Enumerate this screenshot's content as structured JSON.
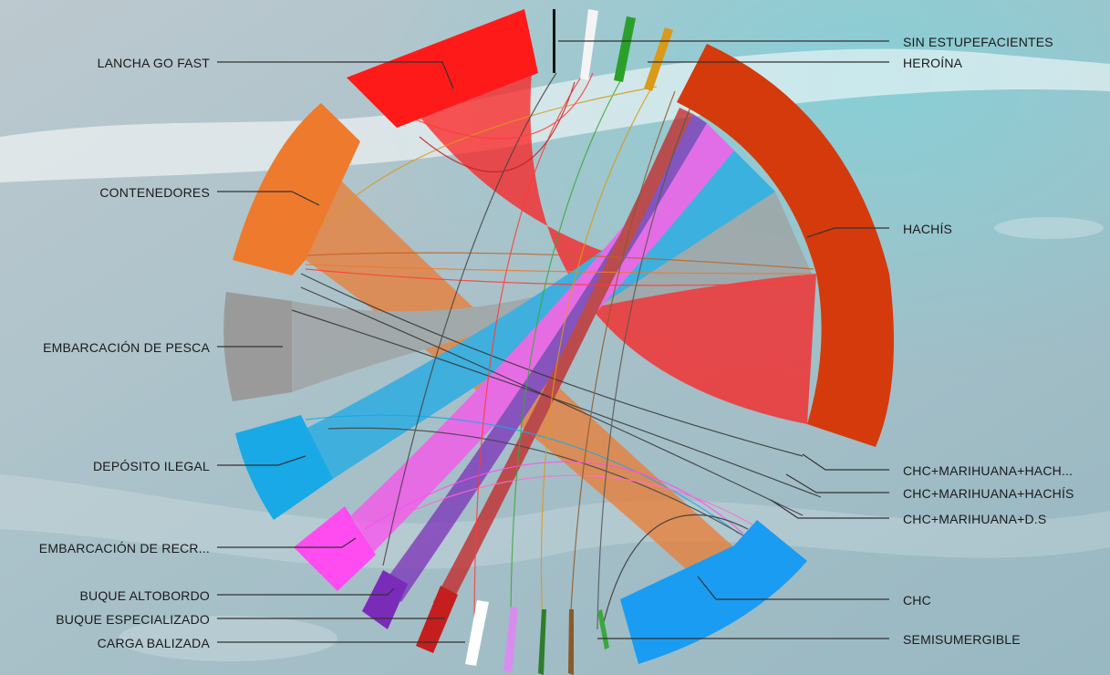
{
  "colors": {
    "lancha": "#ff1a1a",
    "contenedores": "#ee7a2e",
    "pesca": "#9a9a9a",
    "deposito": "#18a9e6",
    "recreo": "#ff4cf0",
    "altobordo": "#7a2bb8",
    "especializado": "#c41e1e",
    "balizada": "#ffffff",
    "hachis": "#d43a0c",
    "chc": "#1a9cf2",
    "sin": "#111111",
    "heroina": "#d89a18",
    "green": "#3aa83a"
  },
  "left_labels": [
    {
      "id": "lancha",
      "text": "LANCHA GO FAST"
    },
    {
      "id": "contenedores",
      "text": "CONTENEDORES"
    },
    {
      "id": "pesca",
      "text": "EMBARCACIÓN DE PESCA"
    },
    {
      "id": "deposito",
      "text": "DEPÓSITO ILEGAL"
    },
    {
      "id": "recreo",
      "text": "EMBARCACIÓN DE RECR..."
    },
    {
      "id": "altobordo",
      "text": "BUQUE ALTOBORDO"
    },
    {
      "id": "especializado",
      "text": "BUQUE ESPECIALIZADO"
    },
    {
      "id": "balizada",
      "text": "CARGA BALIZADA"
    }
  ],
  "right_labels": [
    {
      "id": "sin",
      "text": "SIN ESTUPEFACIENTES"
    },
    {
      "id": "heroina",
      "text": "HEROÍNA"
    },
    {
      "id": "hachis",
      "text": "HACHÍS"
    },
    {
      "id": "chc_mh",
      "text": "CHC+MARIHUANA+HACH..."
    },
    {
      "id": "chc_mhachis",
      "text": "CHC+MARIHUANA+HACHÍS"
    },
    {
      "id": "chc_mds",
      "text": "CHC+MARIHUANA+D.S"
    },
    {
      "id": "chc",
      "text": "CHC"
    },
    {
      "id": "semi",
      "text": "SEMISUMERGIBLE"
    }
  ]
}
